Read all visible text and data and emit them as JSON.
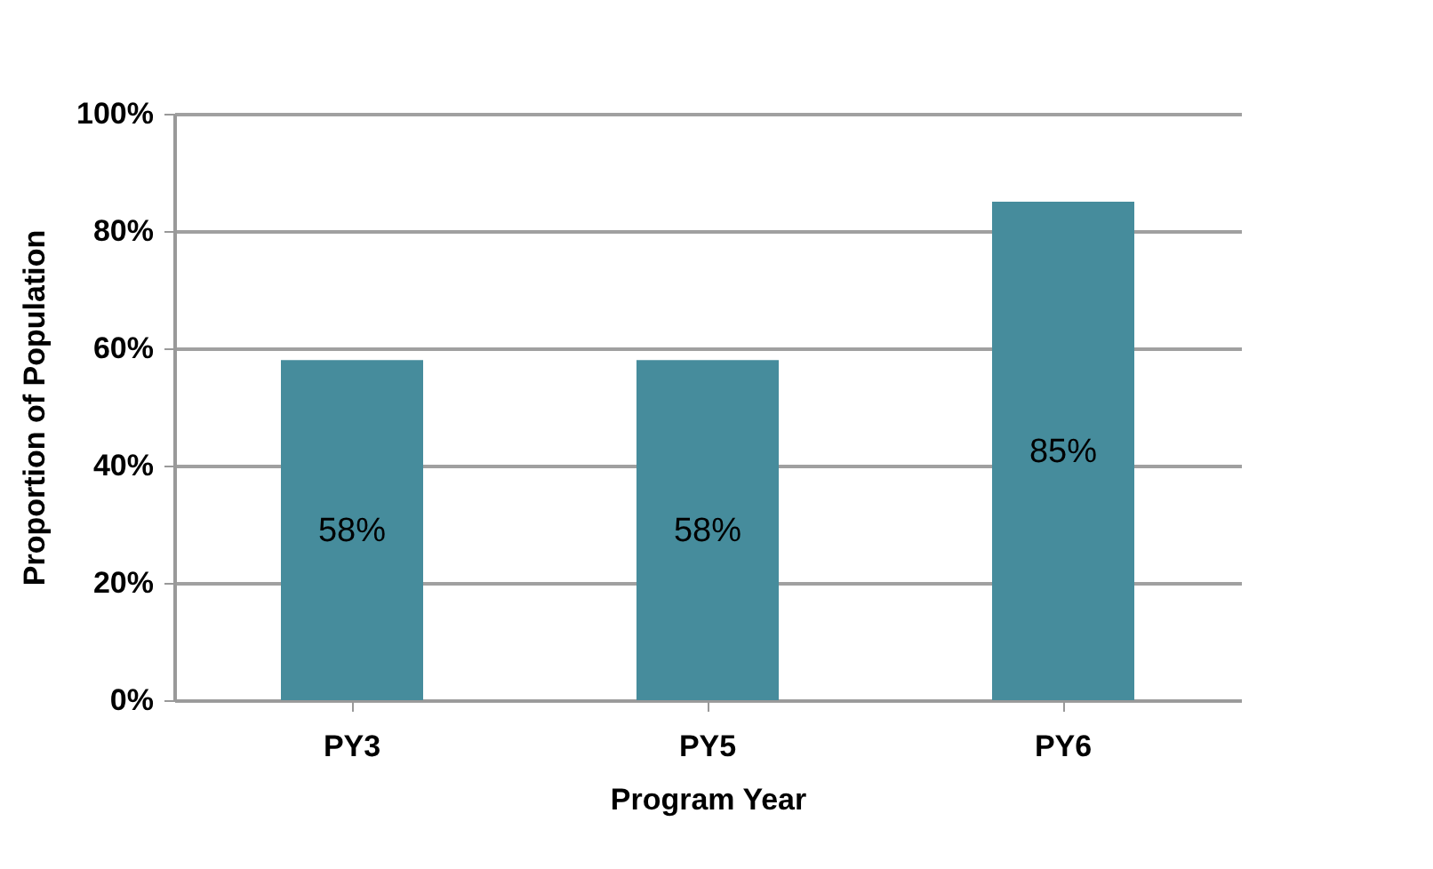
{
  "chart_data": {
    "type": "bar",
    "xlabel": "Program Year",
    "ylabel": "Proportion of Population",
    "categories": [
      "PY3",
      "PY5",
      "PY6"
    ],
    "values": [
      58,
      58,
      85
    ],
    "value_labels": [
      "58%",
      "58%",
      "85%"
    ],
    "color": "#468c9c",
    "ylim": [
      0,
      100
    ],
    "yticks": [
      {
        "value": 0,
        "label": "0%"
      },
      {
        "value": 20,
        "label": "20%"
      },
      {
        "value": 40,
        "label": "40%"
      },
      {
        "value": 60,
        "label": "60%"
      },
      {
        "value": 80,
        "label": "80%"
      },
      {
        "value": 100,
        "label": "100%"
      }
    ],
    "grid": true
  }
}
